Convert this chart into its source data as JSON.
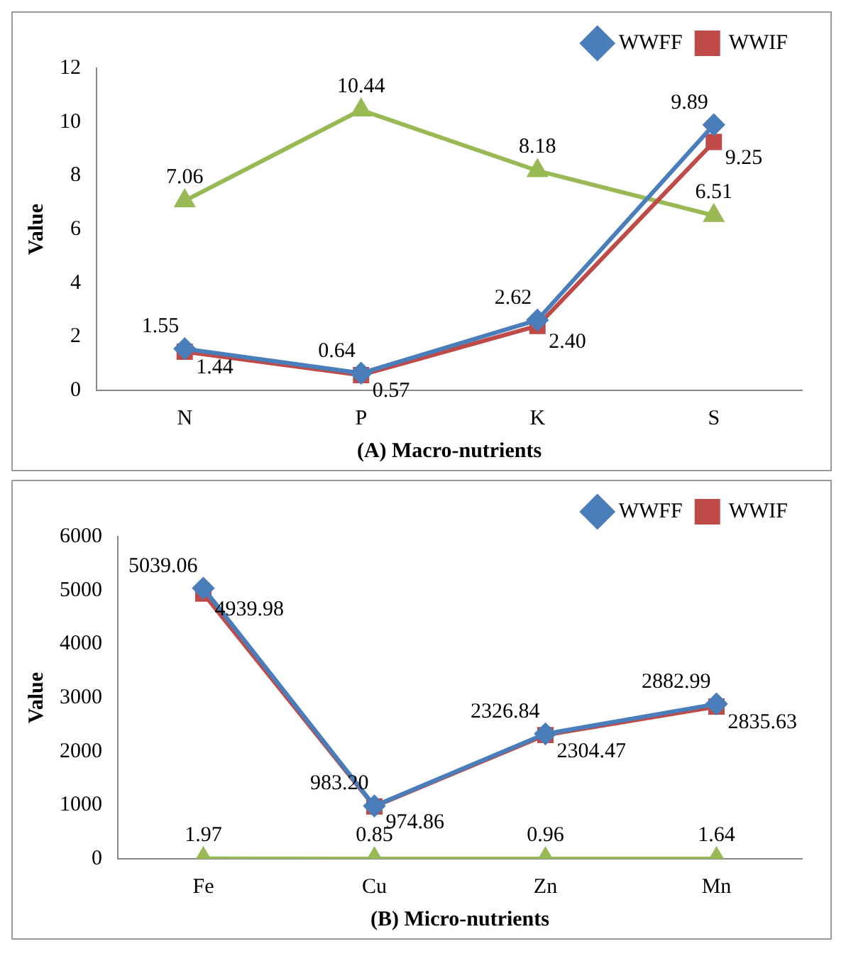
{
  "chart_data": [
    {
      "type": "line",
      "xlabel": "(A) Macro-nutrients",
      "ylabel": "Value",
      "categories": [
        "N",
        "P",
        "K",
        "S"
      ],
      "ylim": [
        0,
        12
      ],
      "yticks": [
        0,
        2,
        4,
        6,
        8,
        10,
        12
      ],
      "grid": false,
      "legend": "top right",
      "series": [
        {
          "name": "WWFF",
          "color": "#4a7ebb",
          "marker": "diamond",
          "values": [
            1.55,
            0.64,
            2.62,
            9.89
          ],
          "value_labels": [
            "1.55",
            "0.64",
            "2.62",
            "9.89"
          ]
        },
        {
          "name": "WWIF",
          "color": "#be4b48",
          "marker": "square",
          "values": [
            1.44,
            0.57,
            2.4,
            9.25
          ],
          "value_labels": [
            "1.44",
            "0.57",
            "2.40",
            "9.25"
          ]
        },
        {
          "color": "#98b954",
          "marker": "triangle",
          "values": [
            7.06,
            10.44,
            8.18,
            6.51
          ],
          "value_labels": [
            "7.06",
            "10.44",
            "8.18",
            "6.51"
          ]
        }
      ]
    },
    {
      "type": "line",
      "xlabel": "(B) Micro-nutrients",
      "ylabel": "Value",
      "categories": [
        "Fe",
        "Cu",
        "Zn",
        "Mn"
      ],
      "ylim": [
        0,
        6000
      ],
      "yticks": [
        0,
        1000,
        2000,
        3000,
        4000,
        5000,
        6000
      ],
      "grid": false,
      "legend": "top right",
      "series": [
        {
          "name": "WWFF",
          "color": "#4a7ebb",
          "marker": "diamond",
          "values": [
            5039.06,
            983.2,
            2326.84,
            2882.99
          ],
          "value_labels": [
            "5039.06",
            "983.20",
            "2326.84",
            "2882.99"
          ]
        },
        {
          "name": "WWIF",
          "color": "#be4b48",
          "marker": "square",
          "values": [
            4939.98,
            974.86,
            2304.47,
            2835.63
          ],
          "value_labels": [
            "4939.98",
            "974.86",
            "2304.47",
            "2835.63"
          ]
        },
        {
          "color": "#98b954",
          "marker": "triangle",
          "values": [
            1.97,
            0.85,
            0.96,
            1.64
          ],
          "value_labels": [
            "1.97",
            "0.85",
            "0.96",
            "1.64"
          ]
        }
      ]
    }
  ]
}
